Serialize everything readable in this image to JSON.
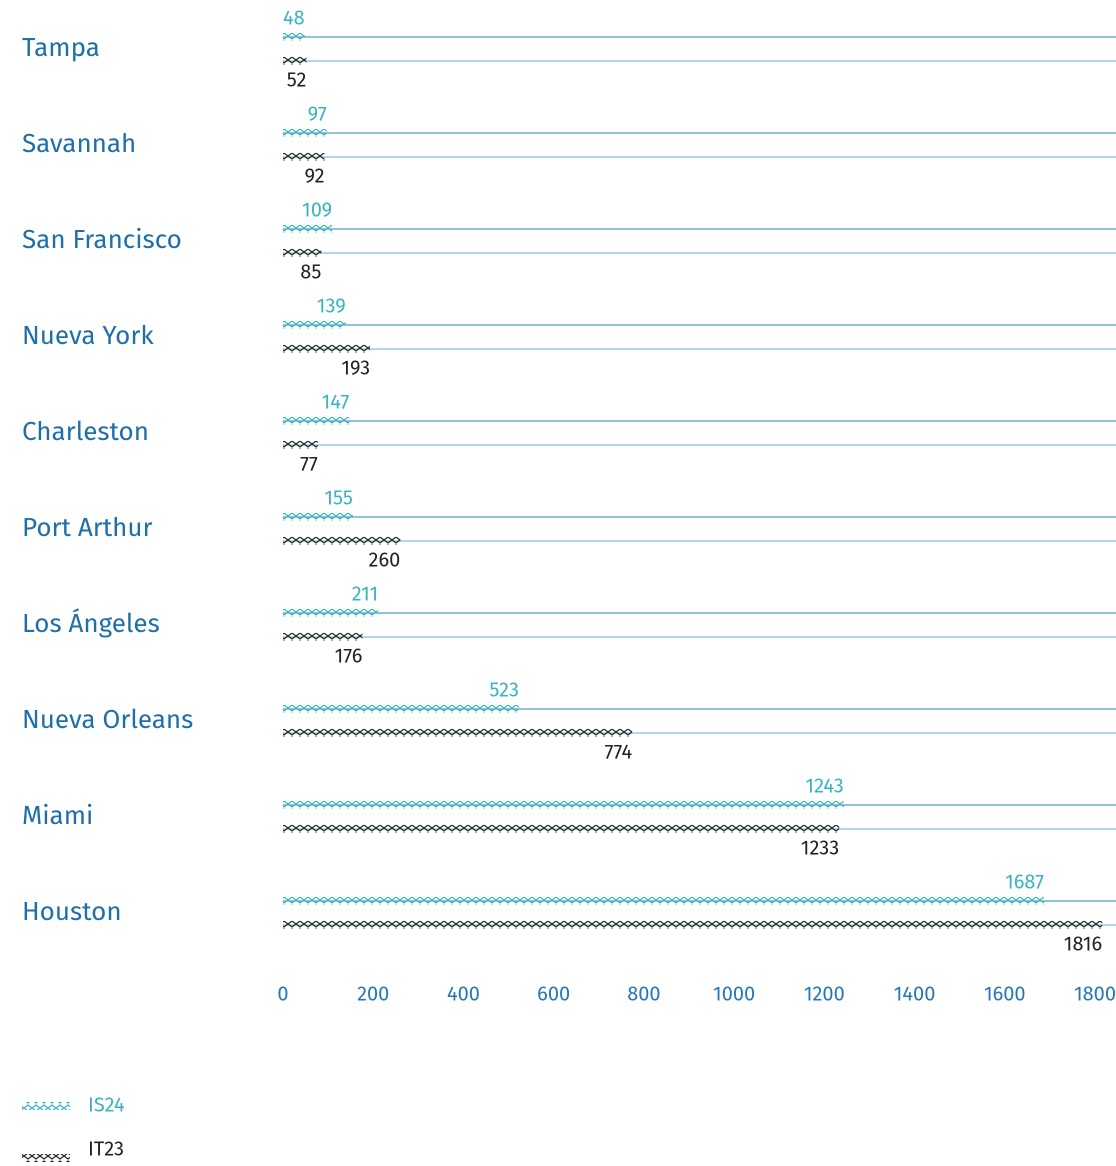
{
  "chart_data": {
    "type": "bar",
    "orientation": "horizontal",
    "categories": [
      "Tampa",
      "Savannah",
      "San Francisco",
      "Nueva York",
      "Charleston",
      "Port Arthur",
      "Los Ángeles",
      "Nueva Orleans",
      "Miami",
      "Houston"
    ],
    "series": [
      {
        "name": "IS24",
        "color": "#3bb4c1",
        "values": [
          48,
          97,
          109,
          139,
          147,
          155,
          211,
          523,
          1243,
          1687
        ]
      },
      {
        "name": "IT23",
        "color": "#222222",
        "values": [
          52,
          92,
          85,
          193,
          77,
          260,
          176,
          774,
          1233,
          1816
        ]
      }
    ],
    "xlim": [
      0,
      1800
    ],
    "xticks": [
      0,
      200,
      400,
      600,
      800,
      1000,
      1200,
      1400,
      1600,
      1800
    ],
    "legend": "bottom-left"
  }
}
